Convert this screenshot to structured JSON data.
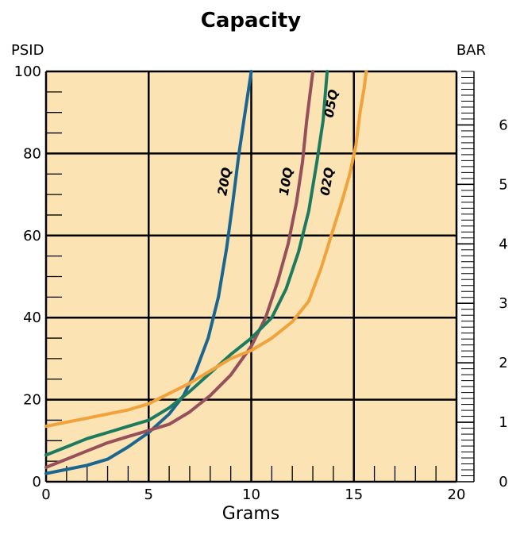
{
  "chart_data": {
    "type": "line",
    "title": "Capacity",
    "xlabel": "Grams",
    "ylabel_left": "PSID",
    "ylabel_right": "BAR",
    "xlim": [
      0,
      20
    ],
    "ylim": [
      0,
      100
    ],
    "ylim_right": [
      0,
      6.9
    ],
    "x_ticks": [
      0,
      5,
      10,
      15,
      20
    ],
    "y_ticks": [
      0,
      20,
      40,
      60,
      80,
      100
    ],
    "y_right_ticks": [
      0,
      1,
      2,
      3,
      4,
      5,
      6
    ],
    "grid": true,
    "background_color": "#FCE3B4",
    "series": [
      {
        "name": "20Q",
        "color": "#1B6690",
        "points": [
          [
            0,
            2
          ],
          [
            1,
            3
          ],
          [
            2,
            4
          ],
          [
            3,
            5.5
          ],
          [
            4,
            8.5
          ],
          [
            5,
            12
          ],
          [
            6,
            16.5
          ],
          [
            6.7,
            21
          ],
          [
            7.3,
            27
          ],
          [
            7.9,
            35
          ],
          [
            8.4,
            45
          ],
          [
            8.8,
            57
          ],
          [
            9.1,
            68
          ],
          [
            9.4,
            80
          ],
          [
            9.7,
            90
          ],
          [
            10,
            100
          ]
        ]
      },
      {
        "name": "10Q",
        "color": "#96505A",
        "points": [
          [
            0,
            3.5
          ],
          [
            1,
            5.5
          ],
          [
            2,
            7.5
          ],
          [
            3,
            9.5
          ],
          [
            4,
            11
          ],
          [
            5,
            12.5
          ],
          [
            6,
            14
          ],
          [
            7,
            17
          ],
          [
            8,
            21
          ],
          [
            9,
            26
          ],
          [
            10,
            33
          ],
          [
            10.7,
            40
          ],
          [
            11.3,
            49
          ],
          [
            11.8,
            58
          ],
          [
            12.2,
            68
          ],
          [
            12.5,
            78
          ],
          [
            12.7,
            88
          ],
          [
            13,
            100
          ]
        ]
      },
      {
        "name": "05Q",
        "color": "#1C7A5E",
        "points": [
          [
            0,
            6.5
          ],
          [
            1,
            8.5
          ],
          [
            2,
            10.5
          ],
          [
            3,
            12
          ],
          [
            4,
            13.5
          ],
          [
            5,
            15
          ],
          [
            6,
            18
          ],
          [
            7,
            22
          ],
          [
            8,
            26.5
          ],
          [
            9,
            31
          ],
          [
            10,
            35
          ],
          [
            11,
            40
          ],
          [
            11.7,
            47
          ],
          [
            12.3,
            56
          ],
          [
            12.8,
            66
          ],
          [
            13.2,
            78
          ],
          [
            13.5,
            88
          ],
          [
            13.7,
            100
          ]
        ]
      },
      {
        "name": "02Q",
        "color": "#F2A23A",
        "points": [
          [
            0,
            13.5
          ],
          [
            1,
            14.5
          ],
          [
            2,
            15.5
          ],
          [
            3,
            16.5
          ],
          [
            4,
            17.5
          ],
          [
            5,
            19
          ],
          [
            6,
            21.5
          ],
          [
            7,
            24
          ],
          [
            8,
            27
          ],
          [
            9,
            30
          ],
          [
            10,
            32
          ],
          [
            11,
            35
          ],
          [
            12,
            39
          ],
          [
            12.8,
            44
          ],
          [
            13.4,
            52
          ],
          [
            13.9,
            60
          ],
          [
            14.4,
            68
          ],
          [
            14.8,
            75
          ],
          [
            15.1,
            82
          ],
          [
            15.3,
            90
          ],
          [
            15.5,
            96
          ],
          [
            15.6,
            100
          ]
        ]
      }
    ],
    "series_label_positions": [
      {
        "name": "20Q",
        "x": 8.9,
        "y": 73
      },
      {
        "name": "10Q",
        "x": 11.9,
        "y": 73
      },
      {
        "name": "05Q",
        "x": 14.1,
        "y": 92
      },
      {
        "name": "02Q",
        "x": 13.9,
        "y": 73
      }
    ]
  }
}
